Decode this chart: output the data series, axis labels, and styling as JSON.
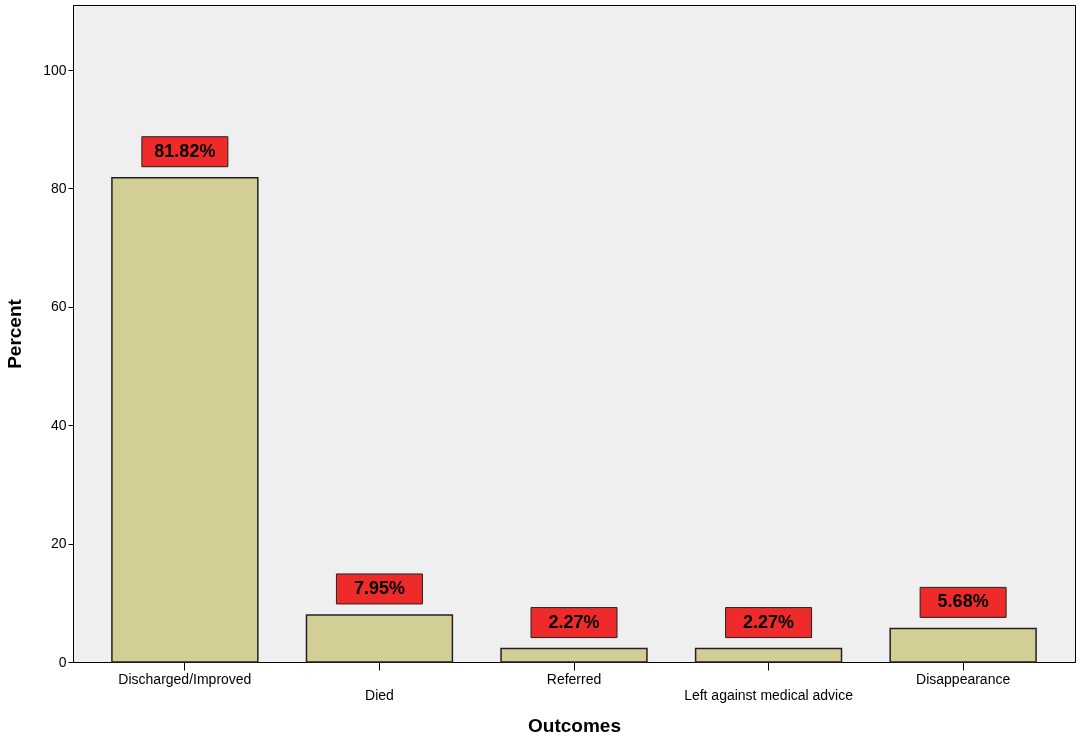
{
  "chart_data": {
    "type": "bar",
    "xlabel": "Outcomes",
    "ylabel": "Percent",
    "categories": [
      "Discharged/Improved",
      "Died",
      "Referred",
      "Left against medical advice",
      "Disappearance"
    ],
    "values": [
      81.82,
      7.95,
      2.27,
      2.27,
      5.68
    ],
    "value_labels": [
      "81.82%",
      "7.95%",
      "2.27%",
      "2.27%",
      "5.68%"
    ],
    "color": "#d3cd96",
    "ylim": [
      0,
      111
    ],
    "yticks": [
      0,
      20,
      40,
      60,
      80,
      100
    ],
    "grid": false
  }
}
